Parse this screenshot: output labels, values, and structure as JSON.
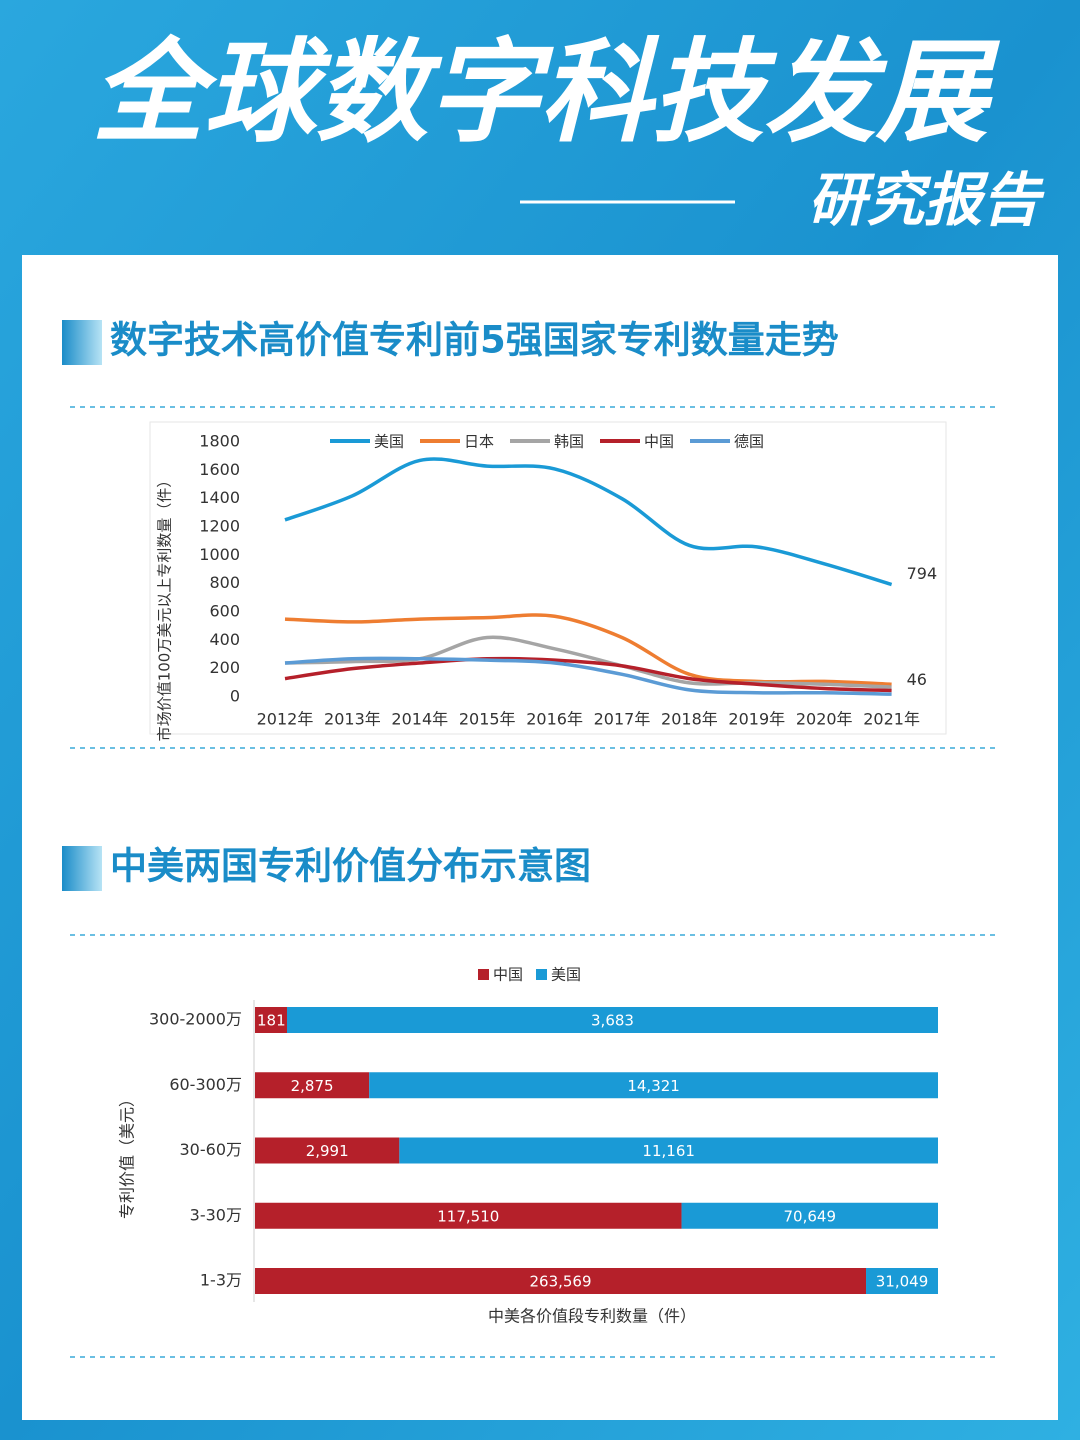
{
  "header": {
    "title": "全球数字科技发展",
    "subtitle": "研究报告"
  },
  "chart_data": [
    {
      "type": "line",
      "title": "数字技术高价值专利前5强国家专利数量走势",
      "y_label": "市场价值100万美元以上专利数量（件）",
      "categories": [
        "2012年",
        "2013年",
        "2014年",
        "2015年",
        "2016年",
        "2017年",
        "2018年",
        "2019年",
        "2020年",
        "2021年"
      ],
      "ylim": [
        0,
        1800
      ],
      "yticks": [
        0,
        200,
        400,
        600,
        800,
        1000,
        1200,
        1400,
        1600,
        1800
      ],
      "smooth": true,
      "series": [
        {
          "name": "美国",
          "color": "#1a9ad6",
          "end_label": true,
          "values": [
            1250,
            1420,
            1670,
            1630,
            1610,
            1400,
            1070,
            1060,
            940,
            794
          ]
        },
        {
          "name": "日本",
          "color": "#ee7d31",
          "values": [
            550,
            530,
            550,
            560,
            570,
            420,
            160,
            110,
            110,
            90
          ]
        },
        {
          "name": "韩国",
          "color": "#a5a5a5",
          "values": [
            240,
            250,
            270,
            420,
            340,
            220,
            100,
            100,
            90,
            70
          ]
        },
        {
          "name": "中国",
          "color": "#b5202a",
          "end_label": true,
          "values": [
            130,
            200,
            240,
            270,
            260,
            220,
            130,
            90,
            60,
            46
          ]
        },
        {
          "name": "德国",
          "color": "#5b9bd5",
          "values": [
            240,
            270,
            270,
            260,
            240,
            160,
            50,
            30,
            30,
            20
          ]
        }
      ]
    },
    {
      "type": "stacked-bar-horizontal-percent",
      "title": "中美两国专利价值分布示意图",
      "x_label": "中美各价值段专利数量（件）",
      "y_label": "专利价值（美元）",
      "categories": [
        "300-2000万",
        "60-300万",
        "30-60万",
        "3-30万",
        "1-3万"
      ],
      "series": [
        {
          "name": "中国",
          "color": "#b5202a",
          "values": [
            181,
            2875,
            2991,
            117510,
            263569
          ],
          "value_labels": [
            "181",
            "2,875",
            "2,991",
            "117,510",
            "263,569"
          ]
        },
        {
          "name": "美国",
          "color": "#1a9ad6",
          "values": [
            3683,
            14321,
            11161,
            70649,
            31049
          ],
          "value_labels": [
            "3,683",
            "14,321",
            "11,161",
            "70,649",
            "31,049"
          ]
        }
      ]
    }
  ]
}
